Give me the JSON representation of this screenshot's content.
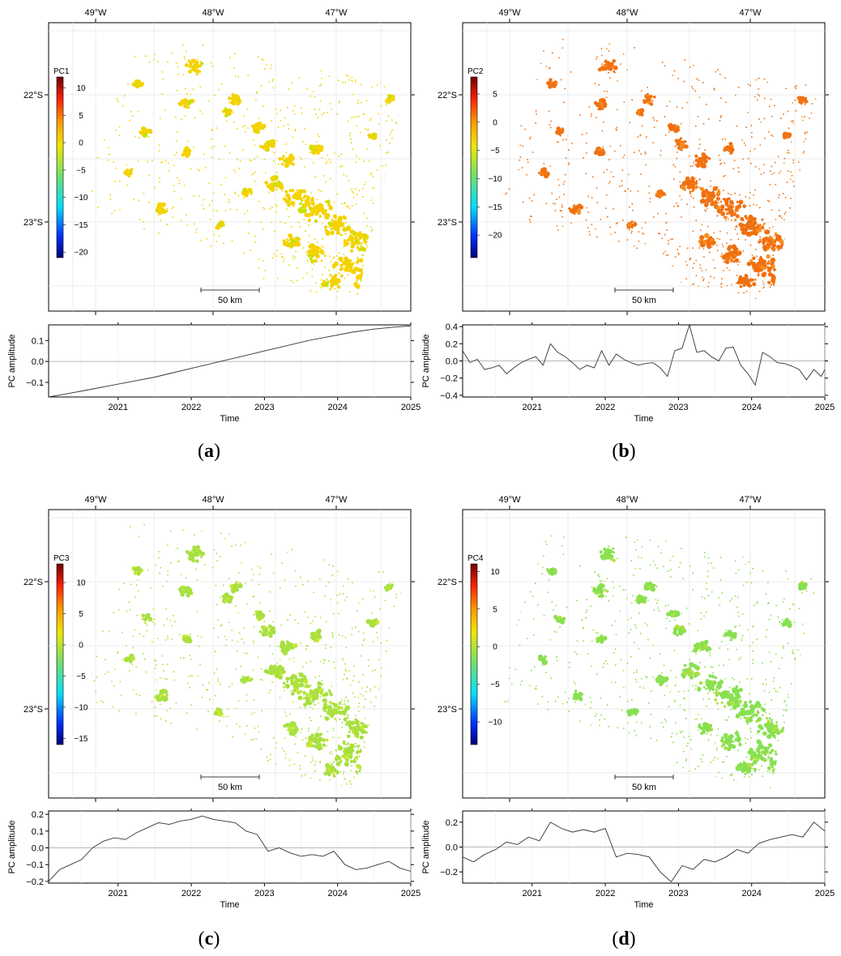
{
  "panels": [
    {
      "id": "a",
      "panel_label": "a",
      "map": {
        "lon_labels": [
          "49°W",
          "48°W",
          "47°W"
        ],
        "lat_labels": [
          "22°S",
          "23°S"
        ],
        "colorbar_title": "PC1",
        "colorbar_ticks": [
          "10",
          "5",
          "0",
          "−5",
          "−10",
          "−15",
          "−20"
        ],
        "colorbar_range": [
          -21,
          12
        ],
        "scale_bar_label": "50 km",
        "dominant_color": "#f5d200",
        "secondary_color": "#c8e000"
      },
      "chart_data": {
        "type": "line",
        "xlabel": "Time",
        "ylabel": "PC amplitude",
        "xlim": [
          2020.05,
          2025.0
        ],
        "ylim": [
          -0.17,
          0.175
        ],
        "x_ticks": [
          "2021",
          "2022",
          "2023",
          "2024",
          "2025"
        ],
        "y_ticks": [
          "0.1",
          "0.0",
          "−0.1"
        ],
        "series": [
          {
            "x": [
              2020.05,
              2020.3,
              2020.6,
              2020.9,
              2021.2,
              2021.5,
              2021.8,
              2022.1,
              2022.4,
              2022.7,
              2023.0,
              2023.3,
              2023.6,
              2023.9,
              2024.2,
              2024.5,
              2024.8,
              2025.0
            ],
            "y": [
              -0.17,
              -0.155,
              -0.135,
              -0.115,
              -0.095,
              -0.075,
              -0.05,
              -0.025,
              0.0,
              0.025,
              0.05,
              0.075,
              0.1,
              0.12,
              0.14,
              0.155,
              0.165,
              0.17
            ]
          }
        ]
      }
    },
    {
      "id": "b",
      "panel_label": "b",
      "map": {
        "lon_labels": [
          "49°W",
          "48°W",
          "47°W"
        ],
        "lat_labels": [
          "22°S",
          "23°S"
        ],
        "colorbar_title": "PC2",
        "colorbar_ticks": [
          "5",
          "0",
          "−5",
          "−10",
          "−15",
          "−20"
        ],
        "colorbar_range": [
          -24,
          8
        ],
        "scale_bar_label": "50 km",
        "dominant_color": "#f07010",
        "secondary_color": "#f59020"
      },
      "chart_data": {
        "type": "line",
        "xlabel": "Time",
        "ylabel": "PC amplitude",
        "xlim": [
          2020.05,
          2025.0
        ],
        "ylim": [
          -0.42,
          0.42
        ],
        "x_ticks": [
          "2021",
          "2022",
          "2023",
          "2024",
          "2025"
        ],
        "y_ticks": [
          "0.4",
          "0.2",
          "0.0",
          "−0.2",
          "−0.4"
        ],
        "series": [
          {
            "x": [
              2020.05,
              2020.15,
              2020.25,
              2020.35,
              2020.45,
              2020.55,
              2020.65,
              2020.75,
              2020.85,
              2020.95,
              2021.05,
              2021.15,
              2021.25,
              2021.35,
              2021.45,
              2021.55,
              2021.65,
              2021.75,
              2021.85,
              2021.95,
              2022.05,
              2022.15,
              2022.25,
              2022.35,
              2022.45,
              2022.55,
              2022.65,
              2022.75,
              2022.85,
              2022.95,
              2023.05,
              2023.15,
              2023.25,
              2023.35,
              2023.45,
              2023.55,
              2023.65,
              2023.75,
              2023.85,
              2023.95,
              2024.05,
              2024.15,
              2024.25,
              2024.35,
              2024.45,
              2024.55,
              2024.65,
              2024.75,
              2024.85,
              2024.95,
              2025.0
            ],
            "y": [
              0.12,
              -0.02,
              0.02,
              -0.1,
              -0.08,
              -0.05,
              -0.15,
              -0.08,
              -0.02,
              0.02,
              0.05,
              -0.05,
              0.2,
              0.1,
              0.05,
              -0.02,
              -0.1,
              -0.05,
              -0.08,
              0.12,
              -0.05,
              0.08,
              0.02,
              -0.02,
              -0.05,
              -0.03,
              -0.02,
              -0.08,
              -0.18,
              0.12,
              0.15,
              0.42,
              0.1,
              0.12,
              0.05,
              0.0,
              0.15,
              0.16,
              -0.05,
              -0.15,
              -0.28,
              0.1,
              0.05,
              -0.02,
              -0.03,
              -0.06,
              -0.1,
              -0.22,
              -0.1,
              -0.18,
              -0.1
            ]
          }
        ]
      }
    },
    {
      "id": "c",
      "panel_label": "c",
      "map": {
        "lon_labels": [
          "49°W",
          "48°W",
          "47°W"
        ],
        "lat_labels": [
          "22°S",
          "23°S"
        ],
        "colorbar_title": "PC3",
        "colorbar_ticks": [
          "10",
          "5",
          "0",
          "−5",
          "−10",
          "−15"
        ],
        "colorbar_range": [
          -16,
          13
        ],
        "scale_bar_label": "50 km",
        "dominant_color": "#a8e040",
        "secondary_color": "#c8e830"
      },
      "chart_data": {
        "type": "line",
        "xlabel": "Time",
        "ylabel": "PC amplitude",
        "xlim": [
          2020.05,
          2025.0
        ],
        "ylim": [
          -0.21,
          0.22
        ],
        "x_ticks": [
          "2021",
          "2022",
          "2023",
          "2024",
          "2025"
        ],
        "y_ticks": [
          "0.2",
          "0.1",
          "0.0",
          "−0.1",
          "−0.2"
        ],
        "series": [
          {
            "x": [
              2020.05,
              2020.2,
              2020.35,
              2020.5,
              2020.65,
              2020.8,
              2020.95,
              2021.1,
              2021.25,
              2021.4,
              2021.55,
              2021.7,
              2021.85,
              2022.0,
              2022.15,
              2022.3,
              2022.45,
              2022.6,
              2022.75,
              2022.9,
              2023.05,
              2023.2,
              2023.35,
              2023.5,
              2023.65,
              2023.8,
              2023.95,
              2024.1,
              2024.25,
              2024.4,
              2024.55,
              2024.7,
              2024.85,
              2025.0
            ],
            "y": [
              -0.2,
              -0.13,
              -0.1,
              -0.07,
              0.0,
              0.04,
              0.06,
              0.05,
              0.09,
              0.12,
              0.15,
              0.14,
              0.16,
              0.17,
              0.19,
              0.17,
              0.16,
              0.15,
              0.1,
              0.08,
              -0.02,
              0.0,
              -0.03,
              -0.05,
              -0.04,
              -0.05,
              -0.02,
              -0.1,
              -0.13,
              -0.12,
              -0.1,
              -0.08,
              -0.12,
              -0.14
            ]
          }
        ]
      }
    },
    {
      "id": "d",
      "panel_label": "d",
      "map": {
        "lon_labels": [
          "49°W",
          "48°W",
          "47°W"
        ],
        "lat_labels": [
          "22°S",
          "23°S"
        ],
        "colorbar_title": "PC4",
        "colorbar_ticks": [
          "10",
          "5",
          "0",
          "−5",
          "−10"
        ],
        "colorbar_range": [
          -13,
          11
        ],
        "scale_bar_label": "50 km",
        "dominant_color": "#88e050",
        "secondary_color": "#b0e040"
      },
      "chart_data": {
        "type": "line",
        "xlabel": "Time",
        "ylabel": "PC amplitude",
        "xlim": [
          2020.05,
          2025.0
        ],
        "ylim": [
          -0.29,
          0.29
        ],
        "x_ticks": [
          "2021",
          "2022",
          "2023",
          "2024",
          "2025"
        ],
        "y_ticks": [
          "0.2",
          "0.0",
          "−0.2"
        ],
        "series": [
          {
            "x": [
              2020.05,
              2020.2,
              2020.35,
              2020.5,
              2020.65,
              2020.8,
              2020.95,
              2021.1,
              2021.25,
              2021.4,
              2021.55,
              2021.7,
              2021.85,
              2022.0,
              2022.15,
              2022.3,
              2022.45,
              2022.6,
              2022.75,
              2022.9,
              2023.05,
              2023.2,
              2023.35,
              2023.5,
              2023.65,
              2023.8,
              2023.95,
              2024.1,
              2024.25,
              2024.4,
              2024.55,
              2024.7,
              2024.85,
              2025.0
            ],
            "y": [
              -0.08,
              -0.12,
              -0.06,
              -0.02,
              0.04,
              0.02,
              0.08,
              0.05,
              0.2,
              0.15,
              0.12,
              0.14,
              0.12,
              0.15,
              -0.08,
              -0.05,
              -0.06,
              -0.08,
              -0.2,
              -0.28,
              -0.15,
              -0.18,
              -0.1,
              -0.12,
              -0.08,
              -0.02,
              -0.05,
              0.03,
              0.06,
              0.08,
              0.1,
              0.08,
              0.2,
              0.13
            ]
          }
        ]
      }
    }
  ]
}
